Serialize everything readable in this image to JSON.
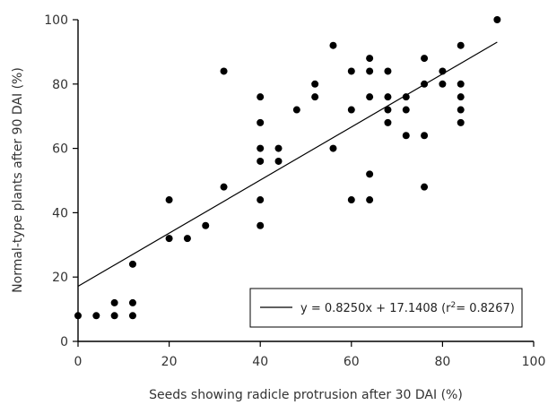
{
  "chart_data": {
    "type": "scatter",
    "title": "",
    "xlabel": "Seeds showing radicle protrusion after 30 DAI (%)",
    "ylabel": "Normal-type plants after 90 DAI (%)",
    "xlim": [
      0,
      100
    ],
    "ylim": [
      0,
      100
    ],
    "xticks": [
      "0",
      "20",
      "40",
      "60",
      "80",
      "100"
    ],
    "yticks": [
      "0",
      "20",
      "40",
      "60",
      "80",
      "100"
    ],
    "grid": false,
    "legend_position": "bottom-right",
    "points": [
      [
        0,
        8
      ],
      [
        4,
        8
      ],
      [
        8,
        8
      ],
      [
        8,
        12
      ],
      [
        12,
        8
      ],
      [
        12,
        12
      ],
      [
        12,
        24
      ],
      [
        20,
        32
      ],
      [
        20,
        44
      ],
      [
        24,
        32
      ],
      [
        28,
        36
      ],
      [
        32,
        48
      ],
      [
        32,
        84
      ],
      [
        40,
        36
      ],
      [
        40,
        44
      ],
      [
        40,
        56
      ],
      [
        40,
        60
      ],
      [
        40,
        68
      ],
      [
        40,
        76
      ],
      [
        44,
        56
      ],
      [
        44,
        60
      ],
      [
        48,
        72
      ],
      [
        52,
        76
      ],
      [
        52,
        80
      ],
      [
        56,
        60
      ],
      [
        56,
        92
      ],
      [
        60,
        44
      ],
      [
        60,
        72
      ],
      [
        60,
        84
      ],
      [
        64,
        44
      ],
      [
        64,
        52
      ],
      [
        64,
        76
      ],
      [
        64,
        84
      ],
      [
        64,
        88
      ],
      [
        68,
        68
      ],
      [
        68,
        72
      ],
      [
        68,
        76
      ],
      [
        68,
        84
      ],
      [
        72,
        64
      ],
      [
        72,
        72
      ],
      [
        72,
        76
      ],
      [
        76,
        48
      ],
      [
        76,
        64
      ],
      [
        76,
        80
      ],
      [
        76,
        88
      ],
      [
        80,
        80
      ],
      [
        80,
        84
      ],
      [
        84,
        68
      ],
      [
        84,
        72
      ],
      [
        84,
        76
      ],
      [
        84,
        80
      ],
      [
        84,
        92
      ],
      [
        92,
        100
      ]
    ],
    "trendline": {
      "slope": 0.825,
      "intercept": 17.1408,
      "x_range": [
        0,
        92
      ]
    },
    "legend": {
      "equation": "y = 0.8250x + 17.1408  (r",
      "sup": "2",
      "rest": "= 0.8267)"
    },
    "colors": {
      "points": "#000000",
      "line": "#000000",
      "axis": "#000000"
    }
  }
}
